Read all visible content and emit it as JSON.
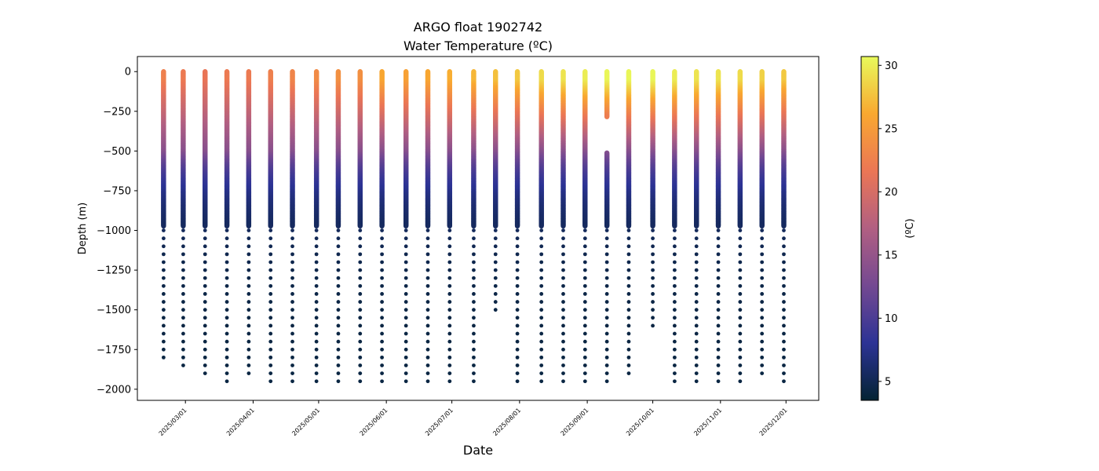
{
  "chart_data": {
    "type": "scatter",
    "title": "ARGO float 1902742",
    "subtitle": "Water Temperature (ºC)",
    "xlabel": "Date",
    "ylabel": "Depth (m)",
    "colorbar_label": "(ºC)",
    "colormap": "thermal",
    "colormap_stops": [
      "#042333",
      "#2c3395",
      "#744992",
      "#b15f82",
      "#eb7655",
      "#f9a830",
      "#e8fa5b"
    ],
    "xlim": [
      "2025-02-07",
      "2025-12-16"
    ],
    "ylim": [
      -2070,
      95
    ],
    "clim": [
      3.5,
      30.7
    ],
    "x_ticks": [
      "2025/03/01",
      "2025/04/01",
      "2025/05/01",
      "2025/06/01",
      "2025/07/01",
      "2025/08/01",
      "2025/09/01",
      "2025/10/01",
      "2025/11/01",
      "2025/12/01"
    ],
    "y_ticks": [
      0,
      -250,
      -500,
      -750,
      -1000,
      -1250,
      -1500,
      -1750,
      -2000
    ],
    "colorbar_ticks": [
      5,
      10,
      15,
      20,
      25,
      30
    ],
    "grid": false,
    "profiles": [
      {
        "date": "2025-02-19",
        "max_depth": 1825,
        "surface_temp": 22.5
      },
      {
        "date": "2025-02-28",
        "max_depth": 1875,
        "surface_temp": 22.0
      },
      {
        "date": "2025-03-10",
        "max_depth": 1925,
        "surface_temp": 21.5
      },
      {
        "date": "2025-03-20",
        "max_depth": 1975,
        "surface_temp": 22.0
      },
      {
        "date": "2025-03-30",
        "max_depth": 1925,
        "surface_temp": 22.0
      },
      {
        "date": "2025-04-09",
        "max_depth": 1975,
        "surface_temp": 22.5
      },
      {
        "date": "2025-04-19",
        "max_depth": 1975,
        "surface_temp": 23.0
      },
      {
        "date": "2025-04-30",
        "max_depth": 1975,
        "surface_temp": 23.5
      },
      {
        "date": "2025-05-10",
        "max_depth": 1965,
        "surface_temp": 24.0
      },
      {
        "date": "2025-05-20",
        "max_depth": 1975,
        "surface_temp": 24.0
      },
      {
        "date": "2025-05-30",
        "max_depth": 1975,
        "surface_temp": 26.0
      },
      {
        "date": "2025-06-10",
        "max_depth": 1965,
        "surface_temp": 25.5
      },
      {
        "date": "2025-06-20",
        "max_depth": 1975,
        "surface_temp": 26.0
      },
      {
        "date": "2025-06-30",
        "max_depth": 1975,
        "surface_temp": 26.5
      },
      {
        "date": "2025-07-11",
        "max_depth": 1975,
        "surface_temp": 27.0
      },
      {
        "date": "2025-07-21",
        "max_depth": 1535,
        "surface_temp": 27.5
      },
      {
        "date": "2025-07-31",
        "max_depth": 1975,
        "surface_temp": 28.0
      },
      {
        "date": "2025-08-11",
        "max_depth": 1975,
        "surface_temp": 29.0
      },
      {
        "date": "2025-08-21",
        "max_depth": 1975,
        "surface_temp": 29.5
      },
      {
        "date": "2025-08-31",
        "max_depth": 1975,
        "surface_temp": 30.0
      },
      {
        "date": "2025-09-10",
        "max_depth": 1975,
        "surface_temp": 30.5,
        "gap": [
          285,
          510
        ]
      },
      {
        "date": "2025-09-20",
        "max_depth": 1925,
        "surface_temp": 30.5
      },
      {
        "date": "2025-10-01",
        "max_depth": 1625,
        "surface_temp": 30.5
      },
      {
        "date": "2025-10-11",
        "max_depth": 1975,
        "surface_temp": 30.0
      },
      {
        "date": "2025-10-21",
        "max_depth": 1975,
        "surface_temp": 29.5
      },
      {
        "date": "2025-10-31",
        "max_depth": 1975,
        "surface_temp": 29.5
      },
      {
        "date": "2025-11-10",
        "max_depth": 1975,
        "surface_temp": 29.0
      },
      {
        "date": "2025-11-20",
        "max_depth": 1925,
        "surface_temp": 28.5
      },
      {
        "date": "2025-11-30",
        "max_depth": 1975,
        "surface_temp": 28.0
      }
    ]
  }
}
